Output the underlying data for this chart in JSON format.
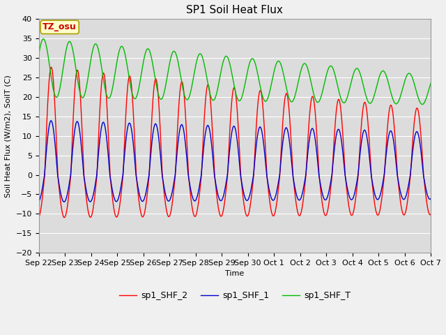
{
  "title": "SP1 Soil Heat Flux",
  "ylabel": "Soil Heat Flux (W/m2), SoilT (C)",
  "xlabel": "Time",
  "ylim": [
    -20,
    40
  ],
  "bg_color": "#dcdcdc",
  "fig_color": "#f0f0f0",
  "line_colors": {
    "sp1_SHF_2": "#ff0000",
    "sp1_SHF_1": "#0000cc",
    "sp1_SHF_T": "#00bb00"
  },
  "annotation_text": "TZ_osu",
  "annotation_bg": "#ffffcc",
  "annotation_border": "#aaa000",
  "annotation_color": "#cc0000",
  "tick_labels": [
    "Sep 22",
    "Sep 23",
    "Sep 24",
    "Sep 25",
    "Sep 26",
    "Sep 27",
    "Sep 28",
    "Sep 29",
    "Sep 30",
    "Oct 1",
    "Oct 2",
    "Oct 3",
    "Oct 4",
    "Oct 5",
    "Oct 6",
    "Oct 7"
  ],
  "yticks": [
    -20,
    -15,
    -10,
    -5,
    0,
    5,
    10,
    15,
    20,
    25,
    30,
    35,
    40
  ],
  "title_fontsize": 11,
  "label_fontsize": 8,
  "tick_fontsize": 8,
  "legend_fontsize": 9
}
